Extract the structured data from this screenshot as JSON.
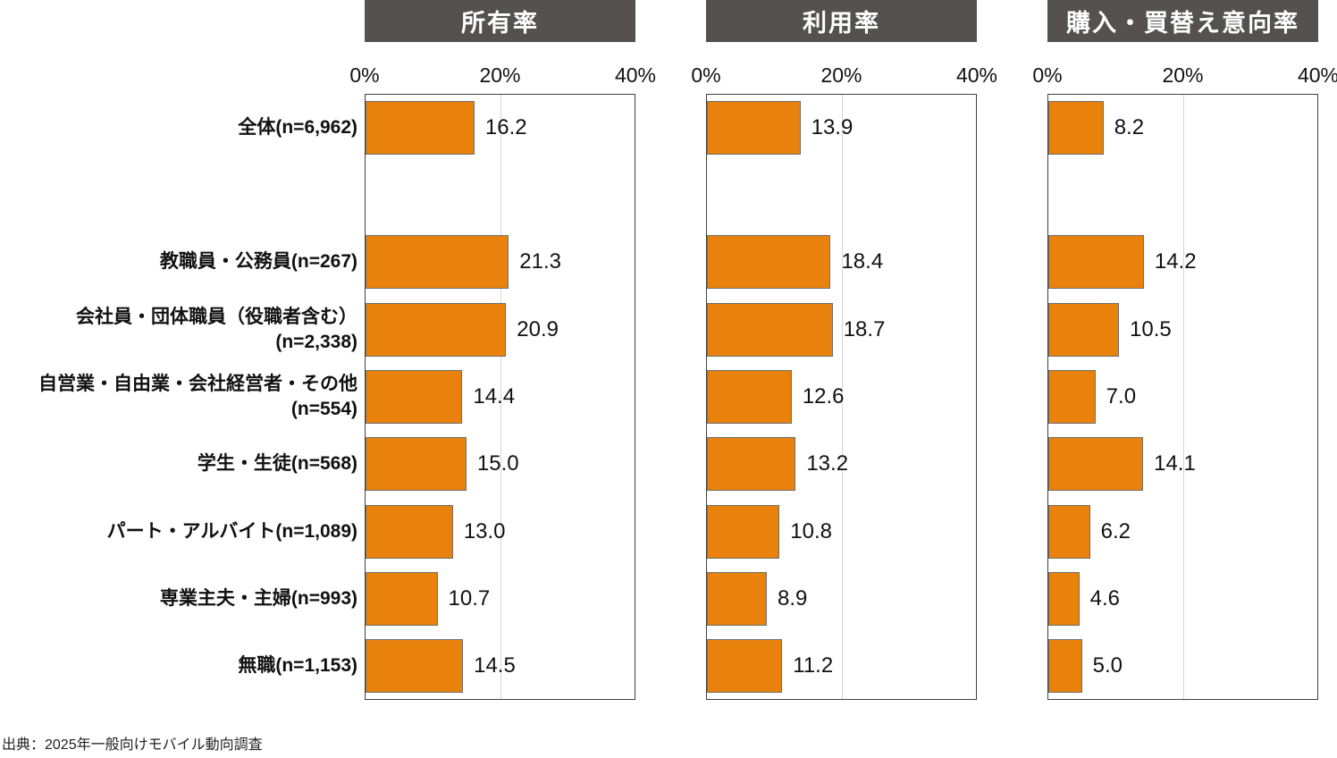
{
  "chart_data": {
    "type": "bar",
    "orientation": "horizontal",
    "unit": "%",
    "xlim": [
      0,
      40
    ],
    "ticks": [
      "0%",
      "20%",
      "40%"
    ],
    "tick_values": [
      0,
      20,
      40
    ],
    "gridline_value": 20,
    "grid": "vertical line at 20% only",
    "legend_position": "none",
    "categories": [
      [
        "全体(n=6,962)"
      ],
      [
        "教職員・公務員(n=267)"
      ],
      [
        "会社員・団体職員（役職者含む）",
        "(n=2,338)"
      ],
      [
        "自営業・自由業・会社経営者・その他",
        "(n=554)"
      ],
      [
        "学生・生徒(n=568)"
      ],
      [
        "パート・アルバイト(n=1,089)"
      ],
      [
        "専業主夫・主婦(n=993)"
      ],
      [
        "無職(n=1,153)"
      ]
    ],
    "series": [
      {
        "name": "所有率",
        "values": [
          16.2,
          21.3,
          20.9,
          14.4,
          15.0,
          13.0,
          10.7,
          14.5
        ]
      },
      {
        "name": "利用率",
        "values": [
          13.9,
          18.4,
          18.7,
          12.6,
          13.2,
          10.8,
          8.9,
          11.2
        ]
      },
      {
        "name": "購入・買替え意向率",
        "values": [
          8.2,
          14.2,
          10.5,
          7.0,
          14.1,
          6.2,
          4.6,
          5.0
        ]
      }
    ],
    "bar_color": "#E8820C",
    "bar_border_color": "#6E6E6E",
    "header_bg": "#555150",
    "header_text_color": "#FFFFFF",
    "plot_border_color": "#404040",
    "gridline_color": "#D6D6D6"
  },
  "footer": {
    "source": "出典：2025年一般向けモバイル動向調査"
  }
}
